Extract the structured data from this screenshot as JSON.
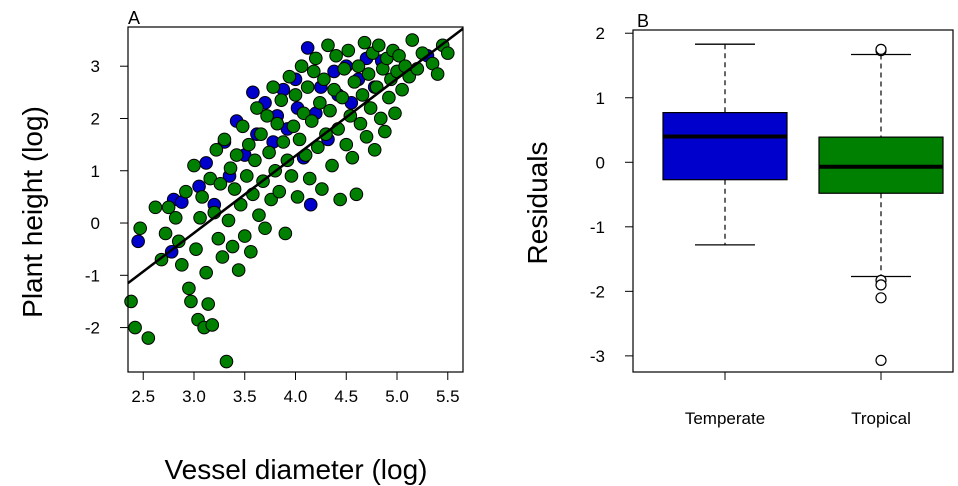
{
  "chart_data": [
    {
      "type": "scatter",
      "panel_label": "A",
      "xlabel": "Vessel diameter (log)",
      "ylabel": "Plant height (log)",
      "xlim": [
        2.35,
        5.65
      ],
      "ylim": [
        -2.85,
        3.75
      ],
      "x_ticks": [
        2.5,
        3.0,
        3.5,
        4.0,
        4.5,
        5.0,
        5.5
      ],
      "x_tick_labels": [
        "2.5",
        "3.0",
        "3.5",
        "4.0",
        "4.5",
        "5.0",
        "5.5"
      ],
      "y_ticks": [
        -2,
        -1,
        0,
        1,
        2,
        3
      ],
      "y_tick_labels": [
        "-2",
        "-1",
        "0",
        "1",
        "2",
        "3"
      ],
      "grid": false,
      "regression_line": {
        "x": [
          2.35,
          5.65
        ],
        "y": [
          -1.15,
          3.72
        ]
      },
      "series": [
        {
          "color": "#0000cc",
          "points": [
            [
              2.45,
              -0.35
            ],
            [
              2.78,
              -0.55
            ],
            [
              2.8,
              0.45
            ],
            [
              2.88,
              0.4
            ],
            [
              3.05,
              0.7
            ],
            [
              3.12,
              1.15
            ],
            [
              3.2,
              0.35
            ],
            [
              3.3,
              1.55
            ],
            [
              3.35,
              0.9
            ],
            [
              3.42,
              1.95
            ],
            [
              3.5,
              1.3
            ],
            [
              3.58,
              2.5
            ],
            [
              3.62,
              1.7
            ],
            [
              3.7,
              2.3
            ],
            [
              3.78,
              1.55
            ],
            [
              3.82,
              2.05
            ],
            [
              3.88,
              2.55
            ],
            [
              3.92,
              1.8
            ],
            [
              4.0,
              2.75
            ],
            [
              4.02,
              2.2
            ],
            [
              4.08,
              1.25
            ],
            [
              4.12,
              3.35
            ],
            [
              4.15,
              0.35
            ],
            [
              4.2,
              2.1
            ],
            [
              4.25,
              2.6
            ],
            [
              4.32,
              1.6
            ],
            [
              4.38,
              2.9
            ],
            [
              4.42,
              2.45
            ],
            [
              4.5,
              3.0
            ],
            [
              4.55,
              2.3
            ],
            [
              4.62,
              2.75
            ],
            [
              4.7,
              3.15
            ],
            [
              4.78,
              2.6
            ],
            [
              4.85,
              3.1
            ],
            [
              5.3,
              3.2
            ]
          ]
        },
        {
          "color": "#008000",
          "points": [
            [
              2.38,
              -1.5
            ],
            [
              2.42,
              -2.0
            ],
            [
              2.47,
              -0.1
            ],
            [
              2.55,
              -2.2
            ],
            [
              2.62,
              0.3
            ],
            [
              2.68,
              -0.7
            ],
            [
              2.72,
              -0.2
            ],
            [
              2.75,
              0.3
            ],
            [
              2.82,
              0.1
            ],
            [
              2.85,
              -0.35
            ],
            [
              2.88,
              -0.8
            ],
            [
              2.92,
              0.6
            ],
            [
              2.95,
              -1.25
            ],
            [
              2.97,
              -1.5
            ],
            [
              3.0,
              1.1
            ],
            [
              3.02,
              -0.5
            ],
            [
              3.04,
              -1.85
            ],
            [
              3.06,
              0.1
            ],
            [
              3.08,
              0.5
            ],
            [
              3.1,
              -2.0
            ],
            [
              3.12,
              -0.95
            ],
            [
              3.14,
              -1.55
            ],
            [
              3.16,
              0.85
            ],
            [
              3.18,
              -1.95
            ],
            [
              3.2,
              0.2
            ],
            [
              3.22,
              1.4
            ],
            [
              3.24,
              -0.3
            ],
            [
              3.26,
              0.75
            ],
            [
              3.28,
              -0.65
            ],
            [
              3.3,
              1.6
            ],
            [
              3.32,
              -2.65
            ],
            [
              3.34,
              0.05
            ],
            [
              3.36,
              1.05
            ],
            [
              3.38,
              -0.45
            ],
            [
              3.4,
              0.65
            ],
            [
              3.42,
              1.3
            ],
            [
              3.44,
              -0.9
            ],
            [
              3.46,
              0.35
            ],
            [
              3.48,
              1.85
            ],
            [
              3.5,
              -0.25
            ],
            [
              3.52,
              0.9
            ],
            [
              3.54,
              1.5
            ],
            [
              3.56,
              -0.55
            ],
            [
              3.58,
              0.55
            ],
            [
              3.6,
              1.2
            ],
            [
              3.62,
              2.2
            ],
            [
              3.64,
              0.15
            ],
            [
              3.66,
              1.7
            ],
            [
              3.68,
              0.8
            ],
            [
              3.7,
              -0.1
            ],
            [
              3.72,
              2.05
            ],
            [
              3.74,
              1.35
            ],
            [
              3.76,
              0.45
            ],
            [
              3.78,
              2.6
            ],
            [
              3.8,
              1.0
            ],
            [
              3.82,
              1.9
            ],
            [
              3.84,
              0.6
            ],
            [
              3.86,
              2.35
            ],
            [
              3.88,
              1.55
            ],
            [
              3.9,
              -0.2
            ],
            [
              3.92,
              1.2
            ],
            [
              3.94,
              2.8
            ],
            [
              3.96,
              0.9
            ],
            [
              3.98,
              1.85
            ],
            [
              4.0,
              2.45
            ],
            [
              4.02,
              0.5
            ],
            [
              4.04,
              1.6
            ],
            [
              4.06,
              3.0
            ],
            [
              4.08,
              2.1
            ],
            [
              4.1,
              1.3
            ],
            [
              4.12,
              2.6
            ],
            [
              4.14,
              0.85
            ],
            [
              4.16,
              1.95
            ],
            [
              4.18,
              2.9
            ],
            [
              4.2,
              3.15
            ],
            [
              4.22,
              1.45
            ],
            [
              4.24,
              2.3
            ],
            [
              4.26,
              0.65
            ],
            [
              4.28,
              2.75
            ],
            [
              4.3,
              1.7
            ],
            [
              4.32,
              3.4
            ],
            [
              4.34,
              2.15
            ],
            [
              4.36,
              1.1
            ],
            [
              4.38,
              2.55
            ],
            [
              4.4,
              3.2
            ],
            [
              4.42,
              1.8
            ],
            [
              4.44,
              0.45
            ],
            [
              4.46,
              2.4
            ],
            [
              4.48,
              2.95
            ],
            [
              4.5,
              1.5
            ],
            [
              4.52,
              3.3
            ],
            [
              4.54,
              2.05
            ],
            [
              4.56,
              1.25
            ],
            [
              4.58,
              2.7
            ],
            [
              4.6,
              0.55
            ],
            [
              4.62,
              3.0
            ],
            [
              4.64,
              1.9
            ],
            [
              4.66,
              2.45
            ],
            [
              4.68,
              3.45
            ],
            [
              4.7,
              1.65
            ],
            [
              4.72,
              2.85
            ],
            [
              4.74,
              2.2
            ],
            [
              4.76,
              3.25
            ],
            [
              4.78,
              1.4
            ],
            [
              4.8,
              2.6
            ],
            [
              4.82,
              3.4
            ],
            [
              4.84,
              2.0
            ],
            [
              4.86,
              2.95
            ],
            [
              4.88,
              1.75
            ],
            [
              4.9,
              3.15
            ],
            [
              4.92,
              2.4
            ],
            [
              4.94,
              2.75
            ],
            [
              4.96,
              3.3
            ],
            [
              4.98,
              2.1
            ],
            [
              5.0,
              2.9
            ],
            [
              5.02,
              3.2
            ],
            [
              5.05,
              2.55
            ],
            [
              5.08,
              3.0
            ],
            [
              5.12,
              2.8
            ],
            [
              5.15,
              3.5
            ],
            [
              5.2,
              2.95
            ],
            [
              5.25,
              3.25
            ],
            [
              5.35,
              3.05
            ],
            [
              5.4,
              2.85
            ],
            [
              5.45,
              3.4
            ],
            [
              5.5,
              3.25
            ]
          ]
        }
      ]
    },
    {
      "type": "box",
      "panel_label": "B",
      "xlabel": "",
      "ylabel": "Residuals",
      "ylim": [
        -3.25,
        2.05
      ],
      "y_ticks": [
        -3,
        -2,
        -1,
        0,
        1,
        2
      ],
      "y_tick_labels": [
        "-3",
        "-2",
        "-1",
        "0",
        "1",
        "2"
      ],
      "grid": false,
      "categories": [
        "Temperate",
        "Tropical"
      ],
      "boxes": [
        {
          "category": "Temperate",
          "color": "#0000cc",
          "whisker_low": -1.28,
          "q1": -0.27,
          "median": 0.4,
          "q3": 0.77,
          "whisker_high": 1.83,
          "outliers": []
        },
        {
          "category": "Tropical",
          "color": "#008000",
          "whisker_low": -1.77,
          "q1": -0.48,
          "median": -0.07,
          "q3": 0.39,
          "whisker_high": 1.67,
          "outliers": [
            1.73,
            1.75,
            -1.83,
            -1.9,
            -2.1,
            -3.07
          ]
        }
      ]
    }
  ]
}
